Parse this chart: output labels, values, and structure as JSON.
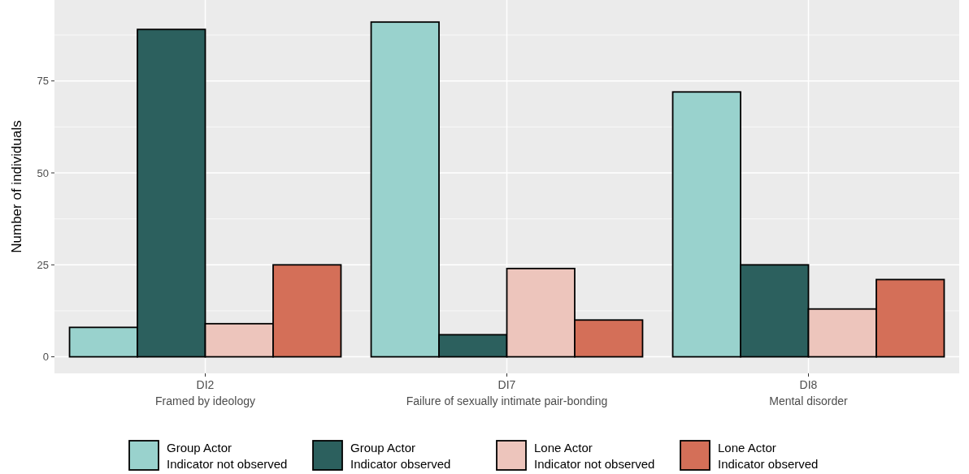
{
  "chart_data": {
    "type": "bar",
    "ylabel": "Number of individuals",
    "categories": [
      "DI2\nFramed by ideology",
      "DI7\nFailure of sexually intimate pair-bonding",
      "DI8\nMental disorder"
    ],
    "series": [
      {
        "name": "Group Actor\nIndicator not observed",
        "color": "#99d2cd",
        "values": [
          8,
          91,
          72
        ]
      },
      {
        "name": "Group Actor\nIndicator observed",
        "color": "#2c605e",
        "values": [
          89,
          6,
          25
        ]
      },
      {
        "name": "Lone Actor\nIndicator not observed",
        "color": "#edc5bc",
        "values": [
          9,
          24,
          13
        ]
      },
      {
        "name": "Lone Actor\nIndicator observed",
        "color": "#d46f58",
        "values": [
          25,
          10,
          21
        ]
      }
    ],
    "ylim": [
      -4.5,
      97
    ],
    "yticks": [
      0,
      25,
      50,
      75
    ],
    "grid": true,
    "legend": "bottom"
  }
}
